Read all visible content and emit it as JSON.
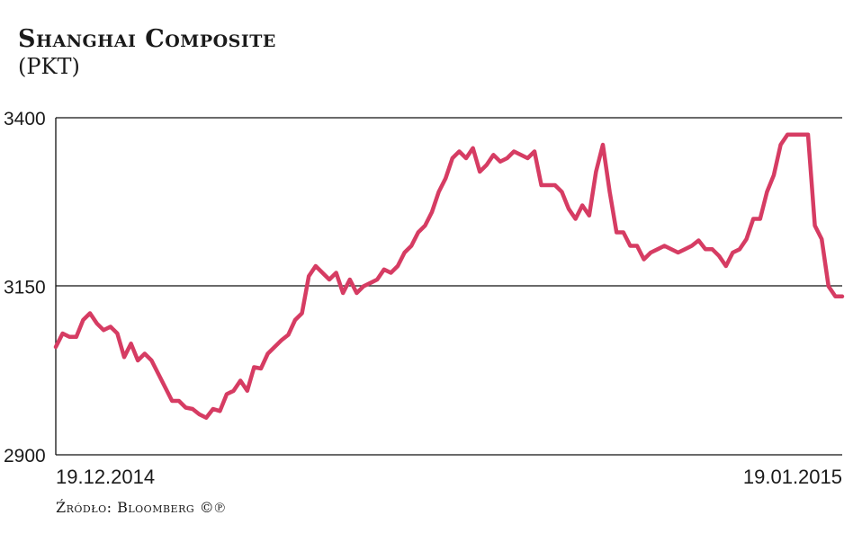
{
  "chart_data": {
    "type": "line",
    "title": "Shanghai Composite",
    "subtitle": "(PKT)",
    "xlabel": "",
    "ylabel": "",
    "ylim": [
      2900,
      3400
    ],
    "y_ticks": [
      "3400",
      "3150",
      "2900"
    ],
    "x_tick_labels": [
      "19.12.2014",
      "19.01.2015"
    ],
    "grid": "horizontal",
    "line_color": "#d63c63",
    "series": [
      {
        "values": [
          3060,
          3080,
          3075,
          3075,
          3100,
          3110,
          3095,
          3085,
          3090,
          3080,
          3045,
          3065,
          3040,
          3050,
          3040,
          3020,
          3000,
          2980,
          2980,
          2970,
          2968,
          2960,
          2955,
          2968,
          2965,
          2990,
          2995,
          3010,
          2995,
          3030,
          3028,
          3050,
          3060,
          3070,
          3078,
          3100,
          3110,
          3165,
          3180,
          3170,
          3160,
          3170,
          3140,
          3160,
          3140,
          3150,
          3155,
          3160,
          3175,
          3170,
          3180,
          3200,
          3210,
          3230,
          3240,
          3260,
          3290,
          3310,
          3340,
          3350,
          3340,
          3355,
          3320,
          3330,
          3345,
          3335,
          3340,
          3350,
          3345,
          3340,
          3350,
          3300,
          3300,
          3300,
          3290,
          3265,
          3250,
          3270,
          3255,
          3320,
          3360,
          3290,
          3230,
          3230,
          3210,
          3210,
          3190,
          3200,
          3205,
          3210,
          3205,
          3200,
          3205,
          3210,
          3218,
          3205,
          3205,
          3195,
          3180,
          3200,
          3205,
          3220,
          3250,
          3250,
          3290,
          3315,
          3360,
          3375,
          3375,
          3375,
          3375,
          3240,
          3220,
          3150,
          3135,
          3135
        ]
      }
    ],
    "annotations": {
      "source": "Źródło: Bloomberg ©℗"
    }
  }
}
